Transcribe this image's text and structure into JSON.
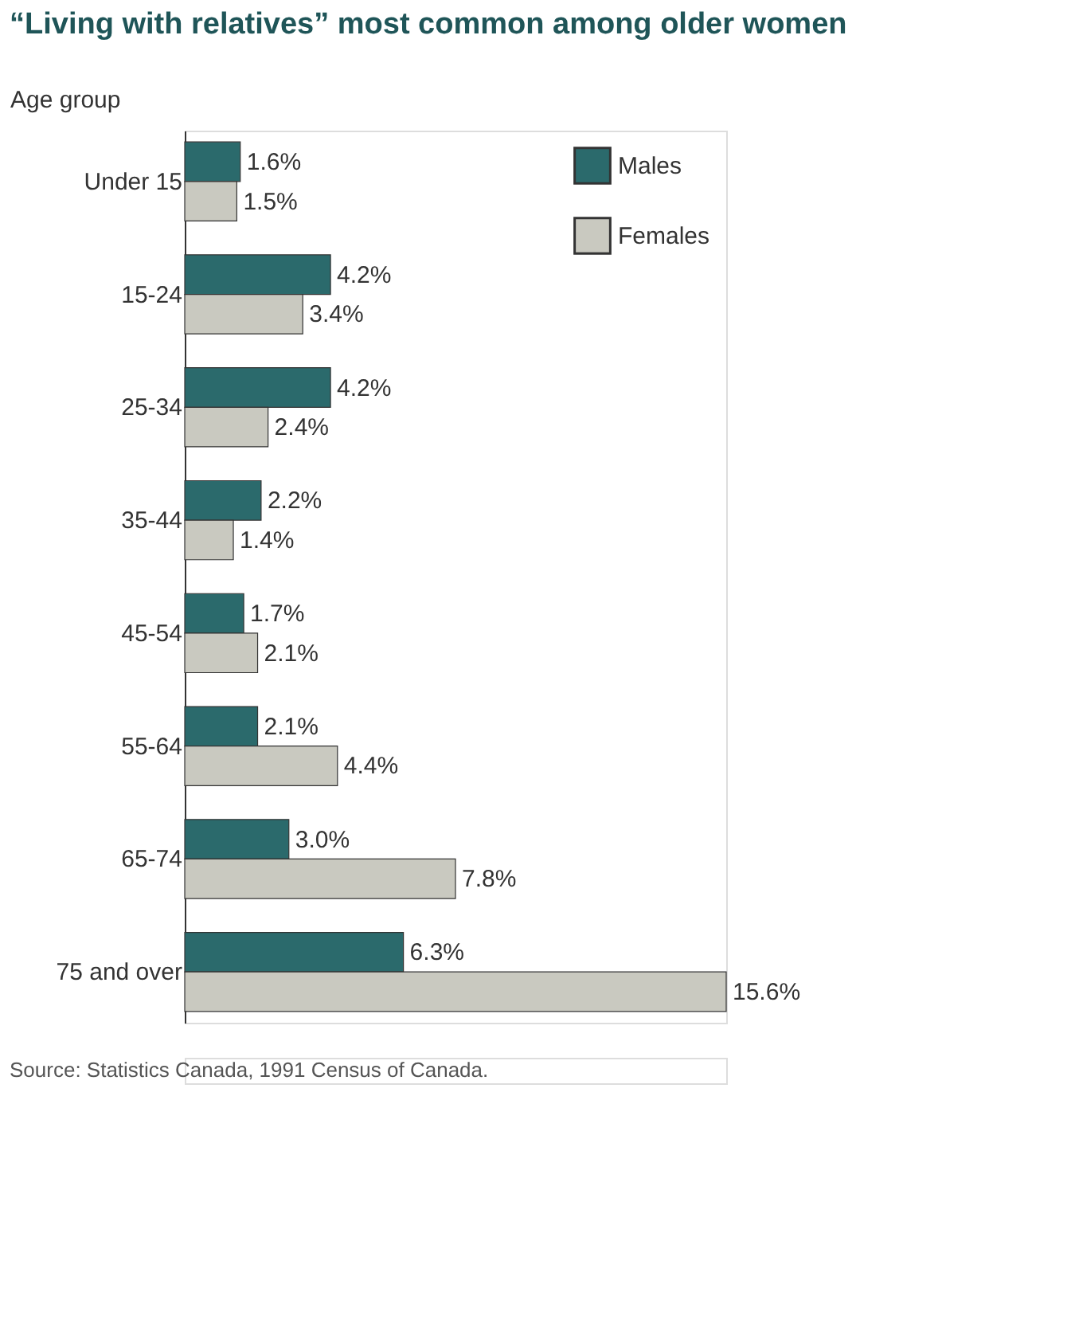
{
  "chart_data": {
    "type": "bar",
    "orientation": "horizontal",
    "title": "“Living with relatives” most common among older women",
    "ylabel": "Age group",
    "categories": [
      "Under 15",
      "15-24",
      "25-34",
      "35-44",
      "45-54",
      "55-64",
      "65-74",
      "75 and over"
    ],
    "series": [
      {
        "name": "Males",
        "color": "#2b6a6c",
        "values": [
          1.6,
          4.2,
          4.2,
          2.2,
          1.7,
          2.1,
          3.0,
          6.3
        ],
        "value_labels": [
          "1.6%",
          "4.2%",
          "4.2%",
          "2.2%",
          "1.7%",
          "2.1%",
          "3.0%",
          "6.3%"
        ]
      },
      {
        "name": "Females",
        "color": "#c9c9c0",
        "values": [
          1.5,
          3.4,
          2.4,
          1.4,
          2.1,
          4.4,
          7.8,
          15.6
        ],
        "value_labels": [
          "1.5%",
          "3.4%",
          "2.4%",
          "1.4%",
          "2.1%",
          "4.4%",
          "7.8%",
          "15.6%"
        ]
      }
    ],
    "legend": "top right",
    "annotations": [
      "Source: Statistics Canada, 1991 Census of Canada."
    ]
  }
}
